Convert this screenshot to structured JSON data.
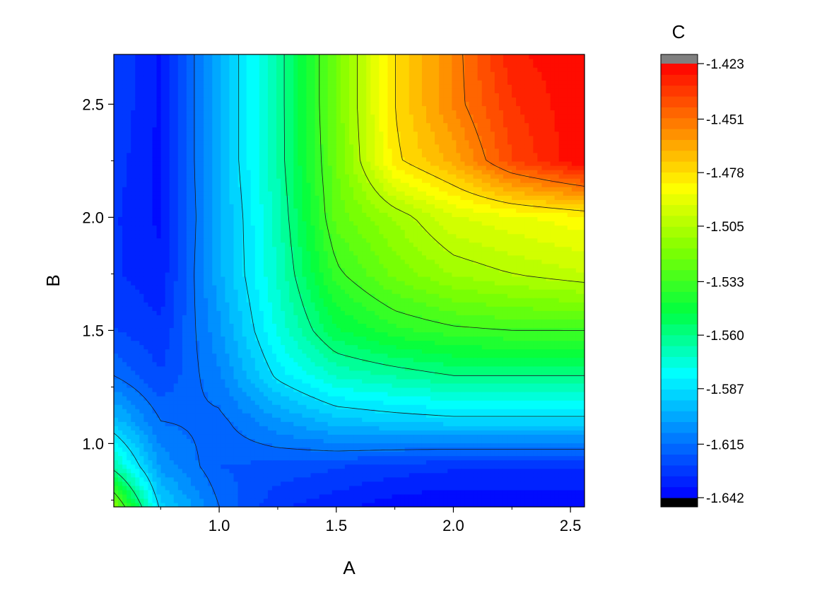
{
  "chart_data": {
    "type": "heatmap",
    "subtype": "filled-contour",
    "xlabel": "A",
    "ylabel": "B",
    "xlim": [
      0.55,
      2.56
    ],
    "ylim": [
      0.72,
      2.72
    ],
    "x_ticks": [
      {
        "value": 1.0,
        "label": "1.0"
      },
      {
        "value": 1.5,
        "label": "1.5"
      },
      {
        "value": 2.0,
        "label": "2.0"
      },
      {
        "value": 2.5,
        "label": "2.5"
      }
    ],
    "y_ticks": [
      {
        "value": 1.0,
        "label": "1.0"
      },
      {
        "value": 1.5,
        "label": "1.5"
      },
      {
        "value": 2.0,
        "label": "2.0"
      },
      {
        "value": 2.5,
        "label": "2.5"
      }
    ],
    "colorbar": {
      "title": "C",
      "min": -1.642,
      "max": -1.423,
      "ticks": [
        {
          "value": -1.423,
          "label": "-1.423"
        },
        {
          "value": -1.451,
          "label": "-1.451"
        },
        {
          "value": -1.478,
          "label": "-1.478"
        },
        {
          "value": -1.505,
          "label": "-1.505"
        },
        {
          "value": -1.533,
          "label": "-1.533"
        },
        {
          "value": -1.56,
          "label": "-1.560"
        },
        {
          "value": -1.587,
          "label": "-1.587"
        },
        {
          "value": -1.615,
          "label": "-1.615"
        },
        {
          "value": -1.642,
          "label": "-1.642"
        }
      ],
      "levels": 40,
      "over_color": "#808080",
      "under_color": "#000000"
    },
    "colormap": [
      "#0000ff",
      "#0080ff",
      "#00ffff",
      "#00ff40",
      "#80ff00",
      "#ffff00",
      "#ff8000",
      "#ff0000"
    ],
    "grid_samples": {
      "x": [
        0.55,
        0.75,
        1.0,
        1.25,
        1.5,
        1.75,
        2.0,
        2.25,
        2.56
      ],
      "y": [
        0.72,
        0.9,
        1.1,
        1.3,
        1.5,
        1.75,
        2.0,
        2.25,
        2.5,
        2.72
      ],
      "z": [
        [
          -1.515,
          -1.59,
          -1.615,
          -1.63,
          -1.635,
          -1.64,
          -1.642,
          -1.642,
          -1.642
        ],
        [
          -1.565,
          -1.605,
          -1.62,
          -1.622,
          -1.625,
          -1.628,
          -1.63,
          -1.63,
          -1.63
        ],
        [
          -1.595,
          -1.615,
          -1.617,
          -1.605,
          -1.595,
          -1.592,
          -1.59,
          -1.59,
          -1.59
        ],
        [
          -1.615,
          -1.625,
          -1.61,
          -1.585,
          -1.57,
          -1.565,
          -1.56,
          -1.56,
          -1.56
        ],
        [
          -1.625,
          -1.63,
          -1.605,
          -1.575,
          -1.55,
          -1.54,
          -1.535,
          -1.533,
          -1.533
        ],
        [
          -1.63,
          -1.635,
          -1.6,
          -1.57,
          -1.535,
          -1.52,
          -1.51,
          -1.505,
          -1.5
        ],
        [
          -1.63,
          -1.638,
          -1.6,
          -1.568,
          -1.525,
          -1.51,
          -1.495,
          -1.49,
          -1.485
        ],
        [
          -1.628,
          -1.638,
          -1.598,
          -1.565,
          -1.522,
          -1.48,
          -1.465,
          -1.44,
          -1.423
        ],
        [
          -1.626,
          -1.638,
          -1.598,
          -1.565,
          -1.52,
          -1.478,
          -1.455,
          -1.435,
          -1.423
        ],
        [
          -1.626,
          -1.638,
          -1.598,
          -1.565,
          -1.52,
          -1.478,
          -1.455,
          -1.43,
          -1.423
        ]
      ]
    }
  }
}
